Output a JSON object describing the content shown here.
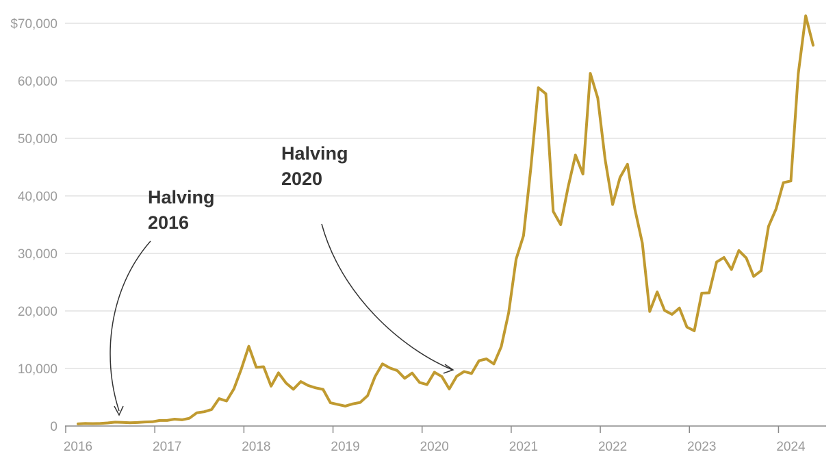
{
  "chart_data": {
    "type": "line",
    "title": "",
    "xlabel": "",
    "ylabel": "",
    "ylim": [
      0,
      70000
    ],
    "xlim": [
      "2016-01",
      "2024-04"
    ],
    "y_ticks": [
      {
        "value": 0,
        "label": "0"
      },
      {
        "value": 10000,
        "label": "10,000"
      },
      {
        "value": 20000,
        "label": "20,000"
      },
      {
        "value": 30000,
        "label": "30,000"
      },
      {
        "value": 40000,
        "label": "40,000"
      },
      {
        "value": 50000,
        "label": "50,000"
      },
      {
        "value": 60000,
        "label": "60,000"
      },
      {
        "value": 70000,
        "label": "$70,000"
      }
    ],
    "x_ticks": [
      {
        "value": "2016-01",
        "label": "2016"
      },
      {
        "value": "2017-01",
        "label": "2017"
      },
      {
        "value": "2018-01",
        "label": "2018"
      },
      {
        "value": "2019-01",
        "label": "2019"
      },
      {
        "value": "2020-01",
        "label": "2020"
      },
      {
        "value": "2021-01",
        "label": "2021"
      },
      {
        "value": "2022-01",
        "label": "2022"
      },
      {
        "value": "2023-01",
        "label": "2023"
      },
      {
        "value": "2024-01",
        "label": "2024"
      }
    ],
    "grid": true,
    "legend": "none",
    "series_color": "#c09a30",
    "series": [
      {
        "x": [
          "2016-01",
          "2016-02",
          "2016-03",
          "2016-04",
          "2016-05",
          "2016-06",
          "2016-07",
          "2016-08",
          "2016-09",
          "2016-10",
          "2016-11",
          "2016-12",
          "2017-01",
          "2017-02",
          "2017-03",
          "2017-04",
          "2017-05",
          "2017-06",
          "2017-07",
          "2017-08",
          "2017-09",
          "2017-10",
          "2017-11",
          "2017-12",
          "2018-01",
          "2018-02",
          "2018-03",
          "2018-04",
          "2018-05",
          "2018-06",
          "2018-07",
          "2018-08",
          "2018-09",
          "2018-10",
          "2018-11",
          "2018-12",
          "2019-01",
          "2019-02",
          "2019-03",
          "2019-04",
          "2019-05",
          "2019-06",
          "2019-07",
          "2019-08",
          "2019-09",
          "2019-10",
          "2019-11",
          "2019-12",
          "2020-01",
          "2020-02",
          "2020-03",
          "2020-04",
          "2020-05",
          "2020-06",
          "2020-07",
          "2020-08",
          "2020-09",
          "2020-10",
          "2020-11",
          "2020-12",
          "2021-01",
          "2021-02",
          "2021-03",
          "2021-04",
          "2021-05",
          "2021-06",
          "2021-07",
          "2021-08",
          "2021-09",
          "2021-10",
          "2021-11",
          "2021-12",
          "2022-01",
          "2022-02",
          "2022-03",
          "2022-04",
          "2022-05",
          "2022-06",
          "2022-07",
          "2022-08",
          "2022-09",
          "2022-10",
          "2022-11",
          "2022-12",
          "2023-01",
          "2023-02",
          "2023-03",
          "2023-04",
          "2023-05",
          "2023-06",
          "2023-07",
          "2023-08",
          "2023-09",
          "2023-10",
          "2023-11",
          "2023-12",
          "2024-01",
          "2024-02",
          "2024-03",
          "2024-04"
        ],
        "values": [
          370,
          440,
          420,
          450,
          530,
          670,
          620,
          570,
          610,
          700,
          740,
          960,
          970,
          1190,
          1080,
          1350,
          2300,
          2480,
          2880,
          4760,
          4340,
          6470,
          9950,
          13860,
          10220,
          10300,
          6930,
          9240,
          7490,
          6390,
          7730,
          7040,
          6630,
          6370,
          4030,
          3740,
          3460,
          3850,
          4100,
          5270,
          8570,
          10800,
          10100,
          9630,
          8300,
          9200,
          7570,
          7200,
          9350,
          8600,
          6440,
          8660,
          9470,
          9130,
          11350,
          11670,
          10790,
          13800,
          19700,
          29000,
          33100,
          45100,
          58800,
          57750,
          37300,
          35000,
          41500,
          47100,
          43800,
          61300,
          57000,
          46300,
          38500,
          43200,
          45500,
          37700,
          31800,
          19900,
          23300,
          20100,
          19400,
          20500,
          17200,
          16550,
          23100,
          23150,
          28500,
          29300,
          27200,
          30500,
          29200,
          26000,
          27000,
          34700,
          37700,
          42300,
          42600,
          61200,
          71300,
          66200
        ]
      }
    ],
    "annotations": [
      {
        "lines": [
          "Halving",
          "2016"
        ],
        "points_to": "2016-07"
      },
      {
        "lines": [
          "Halving",
          "2020"
        ],
        "points_to": "2020-05"
      }
    ]
  }
}
